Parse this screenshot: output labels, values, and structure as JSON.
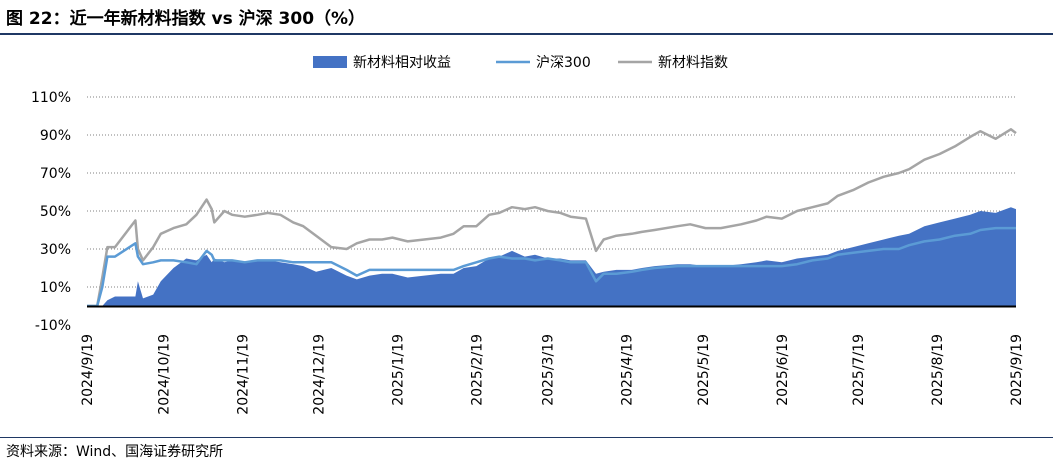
{
  "figure": {
    "title": "图 22：近一年新材料指数 vs 沪深 300（%）",
    "source": "资料来源：Wind、国海证券研究所"
  },
  "colors": {
    "relative": "#4472c4",
    "hs300": "#5b9bd5",
    "index": "#a5a5a5",
    "grid": "#808080",
    "axis": "#000000"
  },
  "chart_data": {
    "type": "area",
    "grid": "horizontal dotted",
    "legend_position": "top",
    "ylim": [
      -10,
      110
    ],
    "y_ticks": [
      "-10%",
      "10%",
      "30%",
      "50%",
      "70%",
      "90%",
      "110%"
    ],
    "x_ticks": [
      "2024/9/19",
      "2024/10/19",
      "2024/11/19",
      "2024/12/19",
      "2025/1/19",
      "2025/2/19",
      "2025/3/19",
      "2025/4/19",
      "2025/5/19",
      "2025/6/19",
      "2025/7/19",
      "2025/8/19",
      "2025/9/19"
    ],
    "x": [
      "2024/9/19",
      "2024/9/23",
      "2024/9/25",
      "2024/9/27",
      "2024/9/30",
      "2024/10/8",
      "2024/10/9",
      "2024/10/11",
      "2024/10/15",
      "2024/10/18",
      "2024/10/23",
      "2024/10/28",
      "2024/11/1",
      "2024/11/5",
      "2024/11/7",
      "2024/11/8",
      "2024/11/12",
      "2024/11/15",
      "2024/11/20",
      "2024/11/25",
      "2024/11/29",
      "2024/12/4",
      "2024/12/9",
      "2024/12/13",
      "2024/12/18",
      "2024/12/24",
      "2024/12/30",
      "2025/1/3",
      "2025/1/8",
      "2025/1/13",
      "2025/1/17",
      "2025/1/23",
      "2025/2/5",
      "2025/2/10",
      "2025/2/14",
      "2025/2/19",
      "2025/2/24",
      "2025/2/28",
      "2025/3/5",
      "2025/3/10",
      "2025/3/14",
      "2025/3/19",
      "2025/3/24",
      "2025/3/28",
      "2025/4/3",
      "2025/4/7",
      "2025/4/10",
      "2025/4/15",
      "2025/4/21",
      "2025/4/25",
      "2025/4/30",
      "2025/5/9",
      "2025/5/14",
      "2025/5/20",
      "2025/5/26",
      "2025/6/3",
      "2025/6/9",
      "2025/6/13",
      "2025/6/19",
      "2025/6/25",
      "2025/7/1",
      "2025/7/7",
      "2025/7/11",
      "2025/7/17",
      "2025/7/23",
      "2025/7/29",
      "2025/8/4",
      "2025/8/8",
      "2025/8/14",
      "2025/8/20",
      "2025/8/26",
      "2025/9/1",
      "2025/9/5",
      "2025/9/11",
      "2025/9/17",
      "2025/9/19"
    ],
    "series": [
      {
        "name": "新材料相对收益",
        "kind": "area",
        "values": [
          0,
          0,
          0,
          3,
          5,
          5,
          13,
          4,
          6,
          13,
          20,
          25,
          24,
          27,
          23,
          25,
          23,
          24,
          23,
          24,
          24,
          23,
          22,
          21,
          18,
          20,
          16,
          14,
          16,
          17,
          17,
          15,
          17,
          17,
          20,
          21,
          25,
          26,
          29,
          26,
          27,
          25,
          25,
          24,
          24,
          17,
          18,
          19,
          19,
          20,
          21,
          22,
          22,
          21,
          21,
          22,
          23,
          24,
          23,
          25,
          26,
          27,
          29,
          31,
          33,
          35,
          37,
          38,
          42,
          44,
          46,
          48,
          50,
          49,
          52,
          51
        ]
      },
      {
        "name": "沪深300",
        "kind": "line",
        "values": [
          0,
          0,
          10,
          26,
          26,
          33,
          26,
          22,
          23,
          24,
          24,
          23,
          22,
          29,
          27,
          24,
          24,
          24,
          23,
          24,
          24,
          24,
          23,
          23,
          23,
          23,
          19,
          16,
          19,
          19,
          19,
          19,
          19,
          19,
          21,
          23,
          25,
          26,
          25,
          25,
          24,
          25,
          24,
          23,
          23,
          13,
          17,
          17,
          18,
          19,
          20,
          21,
          21,
          21,
          21,
          21,
          21,
          21,
          21,
          22,
          24,
          25,
          27,
          28,
          29,
          30,
          30,
          32,
          34,
          35,
          37,
          38,
          40,
          41,
          41,
          41
        ]
      },
      {
        "name": "新材料指数",
        "kind": "line",
        "values": [
          0,
          0,
          15,
          31,
          31,
          45,
          30,
          24,
          31,
          38,
          41,
          43,
          48,
          56,
          51,
          44,
          50,
          48,
          47,
          48,
          49,
          48,
          44,
          42,
          37,
          31,
          30,
          33,
          35,
          35,
          36,
          34,
          36,
          38,
          42,
          42,
          48,
          49,
          52,
          51,
          52,
          50,
          49,
          47,
          46,
          29,
          35,
          37,
          38,
          39,
          40,
          42,
          43,
          41,
          41,
          43,
          45,
          47,
          46,
          50,
          52,
          54,
          58,
          61,
          65,
          68,
          70,
          72,
          77,
          80,
          84,
          89,
          92,
          88,
          93,
          91
        ]
      }
    ]
  }
}
